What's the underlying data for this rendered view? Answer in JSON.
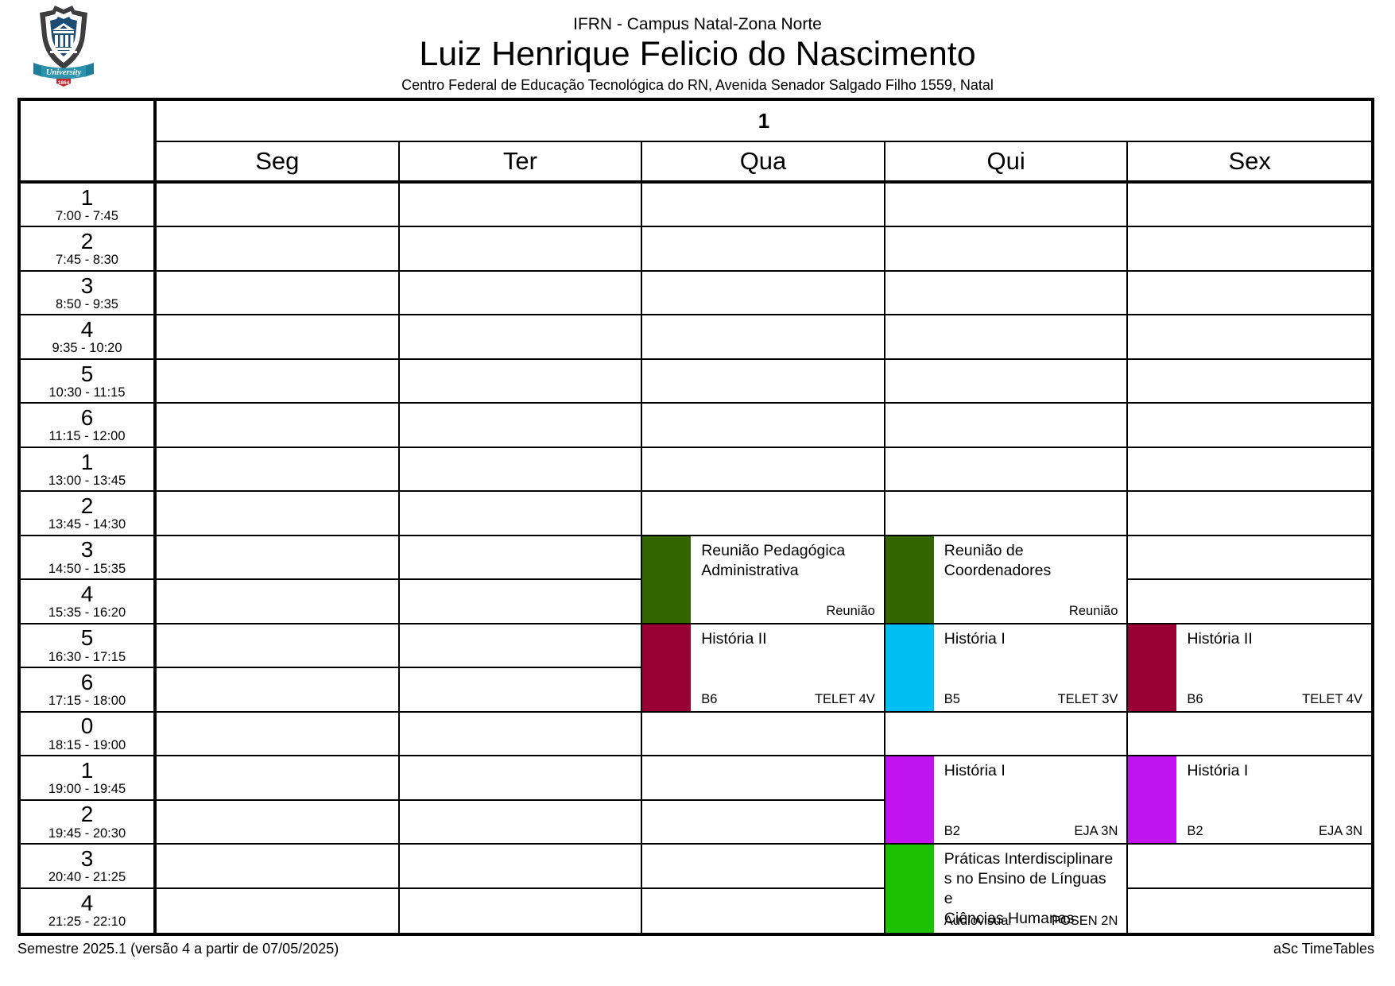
{
  "header": {
    "institution": "IFRN - Campus Natal-Zona Norte",
    "person": "Luiz Henrique Felicio do Nascimento",
    "address": "Centro Federal de Educação Tecnológica do RN, Avenida Senador Salgado Filho 1559, Natal",
    "logo": {
      "label": "University",
      "year": "1864"
    }
  },
  "table": {
    "group_label": "1",
    "days": [
      "Seg",
      "Ter",
      "Qua",
      "Qui",
      "Sex"
    ],
    "periods": [
      {
        "num": "1",
        "time": "7:00 - 7:45"
      },
      {
        "num": "2",
        "time": "7:45 - 8:30"
      },
      {
        "num": "3",
        "time": "8:50 - 9:35"
      },
      {
        "num": "4",
        "time": "9:35 - 10:20"
      },
      {
        "num": "5",
        "time": "10:30 - 11:15"
      },
      {
        "num": "6",
        "time": "11:15 - 12:00"
      },
      {
        "num": "1",
        "time": "13:00 - 13:45"
      },
      {
        "num": "2",
        "time": "13:45 - 14:30"
      },
      {
        "num": "3",
        "time": "14:50 - 15:35"
      },
      {
        "num": "4",
        "time": "15:35 - 16:20"
      },
      {
        "num": "5",
        "time": "16:30 - 17:15"
      },
      {
        "num": "6",
        "time": "17:15 - 18:00"
      },
      {
        "num": "0",
        "time": "18:15 - 19:00"
      },
      {
        "num": "1",
        "time": "19:00 - 19:45"
      },
      {
        "num": "2",
        "time": "19:45 - 20:30"
      },
      {
        "num": "3",
        "time": "20:40 - 21:25"
      },
      {
        "num": "4",
        "time": "21:25 - 22:10"
      }
    ],
    "events": [
      {
        "day": "Qua",
        "day_index": 2,
        "row": 8,
        "span": 2,
        "color": "#336600",
        "title": "Reunião Pedagógica\nAdministrativa",
        "room": "",
        "badge": "Reunião"
      },
      {
        "day": "Qui",
        "day_index": 3,
        "row": 8,
        "span": 2,
        "color": "#336600",
        "title": "Reunião de\nCoordenadores",
        "room": "",
        "badge": "Reunião"
      },
      {
        "day": "Qua",
        "day_index": 2,
        "row": 10,
        "span": 2,
        "color": "#990033",
        "title": "História II",
        "room": "B6",
        "badge": "TELET 4V"
      },
      {
        "day": "Qui",
        "day_index": 3,
        "row": 10,
        "span": 2,
        "color": "#00bdf2",
        "title": "História I",
        "room": "B5",
        "badge": "TELET 3V"
      },
      {
        "day": "Sex",
        "day_index": 4,
        "row": 10,
        "span": 2,
        "color": "#990033",
        "title": "História II",
        "room": "B6",
        "badge": "TELET 4V"
      },
      {
        "day": "Qui",
        "day_index": 3,
        "row": 13,
        "span": 2,
        "color": "#c013f0",
        "title": "História I",
        "room": "B2",
        "badge": "EJA 3N"
      },
      {
        "day": "Sex",
        "day_index": 4,
        "row": 13,
        "span": 2,
        "color": "#c013f0",
        "title": "História I",
        "room": "B2",
        "badge": "EJA 3N"
      },
      {
        "day": "Qui",
        "day_index": 3,
        "row": 15,
        "span": 2,
        "color": "#1dc000",
        "title": "Práticas Interdisciplinare\ns no Ensino de Línguas e\nCiências Humanas",
        "room": "Audiovisual",
        "badge": "POSEN 2N"
      }
    ]
  },
  "footer": {
    "left": "Semestre 2025.1 (versão 4 a partir de 07/05/2025)",
    "right": "aSc TimeTables"
  }
}
